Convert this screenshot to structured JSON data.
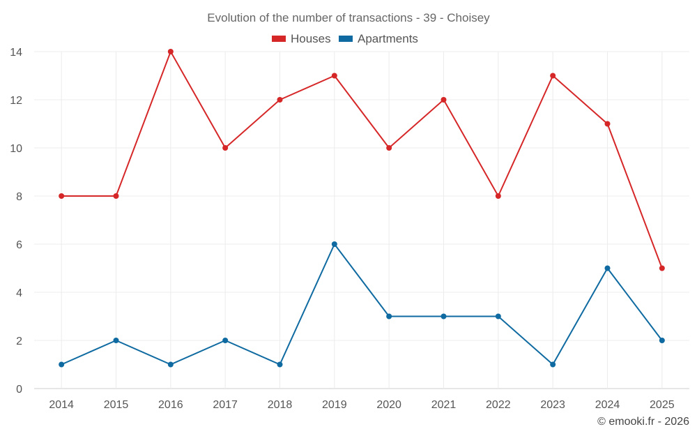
{
  "chart_data": {
    "type": "line",
    "title": "Evolution of the number of transactions - 39 - Choisey",
    "categories": [
      "2014",
      "2015",
      "2016",
      "2017",
      "2018",
      "2019",
      "2020",
      "2021",
      "2022",
      "2023",
      "2024",
      "2025"
    ],
    "series": [
      {
        "name": "Houses",
        "color": "#d62728",
        "values": [
          8,
          8,
          14,
          10,
          12,
          13,
          10,
          12,
          8,
          13,
          11,
          5
        ]
      },
      {
        "name": "Apartments",
        "color": "#0e6aa0",
        "values": [
          1,
          2,
          1,
          2,
          1,
          6,
          3,
          3,
          3,
          1,
          5,
          2
        ]
      }
    ],
    "ylim": [
      0,
      14
    ],
    "yticks": [
      0,
      2,
      4,
      6,
      8,
      10,
      12,
      14
    ],
    "xlabel": "",
    "ylabel": "",
    "grid": true,
    "legend": "top-center"
  },
  "credit": "© emooki.fr - 2026"
}
